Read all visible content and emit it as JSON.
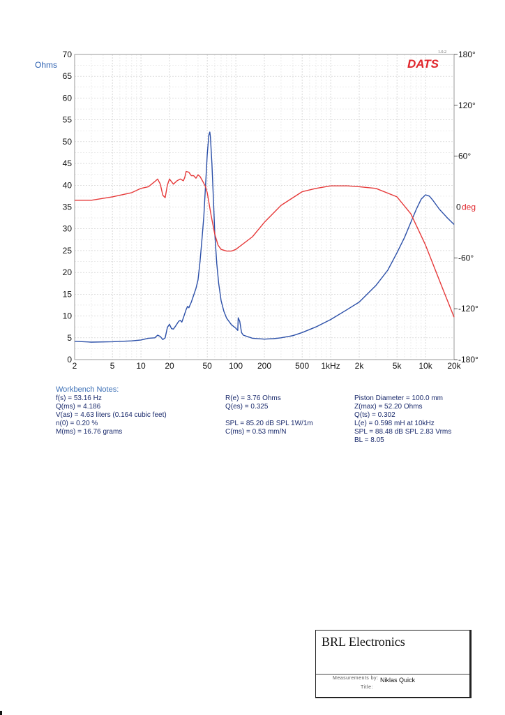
{
  "chart_data": {
    "type": "line",
    "x_scale": "log",
    "xlim": [
      2,
      20000
    ],
    "ylim": [
      0,
      70
    ],
    "y2lim": [
      -180,
      180
    ],
    "grid": true,
    "ylabel": "Ohms",
    "x_tick_labels": [
      "2",
      "5",
      "10",
      "20",
      "50",
      "100",
      "200",
      "500",
      "1kHz",
      "2k",
      "5k",
      "10k",
      "20k"
    ],
    "x_ticks": [
      2,
      5,
      10,
      20,
      50,
      100,
      200,
      500,
      1000,
      2000,
      5000,
      10000,
      20000
    ],
    "y_ticks": [
      0,
      5,
      10,
      15,
      20,
      25,
      30,
      35,
      40,
      45,
      50,
      55,
      60,
      65,
      70
    ],
    "y2_ticks": [
      {
        "value": 180,
        "label": "180°"
      },
      {
        "value": 120,
        "label": "120°"
      },
      {
        "value": 60,
        "label": "60°"
      },
      {
        "value": 0,
        "label": "deg"
      },
      {
        "value": -60,
        "label": "-60°"
      },
      {
        "value": -120,
        "label": "-120°"
      },
      {
        "value": -180,
        "label": "-180°"
      }
    ],
    "zero_label": "0",
    "brand": "DATS",
    "version": "1.0.2",
    "series": [
      {
        "color": "#2b4fa8",
        "axis": "left",
        "x": [
          2,
          3,
          5,
          8,
          10,
          12,
          14,
          15,
          16,
          17,
          18,
          19,
          20,
          21,
          22,
          23,
          25,
          26,
          27,
          28,
          30,
          31,
          32,
          34,
          36,
          38,
          40,
          42,
          44,
          46,
          48,
          50,
          52,
          53.2,
          54,
          56,
          58,
          60,
          63,
          66,
          70,
          75,
          80,
          90,
          100,
          105,
          106,
          110,
          115,
          120,
          150,
          200,
          250,
          300,
          400,
          500,
          700,
          1000,
          1500,
          2000,
          3000,
          4000,
          5000,
          6000,
          7000,
          8000,
          9000,
          10000,
          11000,
          12000,
          14000,
          17000,
          20000
        ],
        "values": [
          4.2,
          4.0,
          4.1,
          4.3,
          4.5,
          4.9,
          5.0,
          5.6,
          5.3,
          4.6,
          5.0,
          7.4,
          8.1,
          7.1,
          7.0,
          7.6,
          8.8,
          9.0,
          8.6,
          9.6,
          11.5,
          12.2,
          11.9,
          13.2,
          14.8,
          16.3,
          18.3,
          22.5,
          27.7,
          32.8,
          40.0,
          47.0,
          51.5,
          52.2,
          51.0,
          45.0,
          37.0,
          29.0,
          22.0,
          17.5,
          13.5,
          11.0,
          9.5,
          8.0,
          7.2,
          6.7,
          9.6,
          8.8,
          6.2,
          5.6,
          4.9,
          4.7,
          4.8,
          5.0,
          5.5,
          6.2,
          7.5,
          9.2,
          11.5,
          13.2,
          17.0,
          20.5,
          24.5,
          28.0,
          31.5,
          34.5,
          36.8,
          37.8,
          37.5,
          36.5,
          34.5,
          32.5,
          31.0
        ]
      },
      {
        "color": "#e63a3a",
        "axis": "right",
        "x": [
          2,
          3,
          5,
          8,
          10,
          12,
          14,
          15,
          16,
          17,
          18,
          19,
          20,
          22,
          24,
          26,
          28,
          29,
          30,
          32,
          34,
          36,
          38,
          40,
          42,
          45,
          48,
          50,
          55,
          60,
          65,
          70,
          80,
          90,
          100,
          150,
          200,
          300,
          500,
          700,
          1000,
          1500,
          2000,
          3000,
          5000,
          7000,
          10000,
          15000,
          20000
        ],
        "values": [
          8,
          8,
          12,
          17,
          22,
          24,
          30,
          33,
          27,
          14,
          11,
          26,
          33,
          27,
          31,
          33,
          31,
          35,
          42,
          41,
          37,
          37,
          34,
          38,
          36,
          30,
          24,
          17,
          -10,
          -32,
          -45,
          -50,
          -52,
          -52,
          -50,
          -35,
          -18,
          2,
          18,
          22,
          25,
          25,
          24,
          22,
          12,
          -8,
          -45,
          -95,
          -130
        ]
      }
    ]
  },
  "workbench": {
    "title": "Workbench Notes:",
    "col1": [
      "f(s) = 53.16 Hz",
      "Q(ms) = 4.186",
      "V(as) = 4.63 liters  (0.164 cubic feet)",
      "n(0) = 0.20 %",
      "M(ms) = 16.76 grams"
    ],
    "col2": [
      "R(e) = 3.76 Ohms",
      "Q(es) = 0.325",
      "",
      "SPL = 85.20 dB SPL 1W/1m",
      "C(ms) = 0.53 mm/N"
    ],
    "col3": [
      "Piston Diameter = 100.0 mm",
      "Z(max) = 52.20 Ohms",
      "Q(ts) = 0.302",
      "L(e) = 0.598 mH at 10kHz",
      "SPL = 88.48 dB SPL 2.83 Vrms",
      "BL = 8.05"
    ]
  },
  "titlebox": {
    "company": "BRL Electronics",
    "measurements_label": "Measurements by:",
    "measurements_value": "Niklas Quick",
    "title_label": "Title:"
  }
}
